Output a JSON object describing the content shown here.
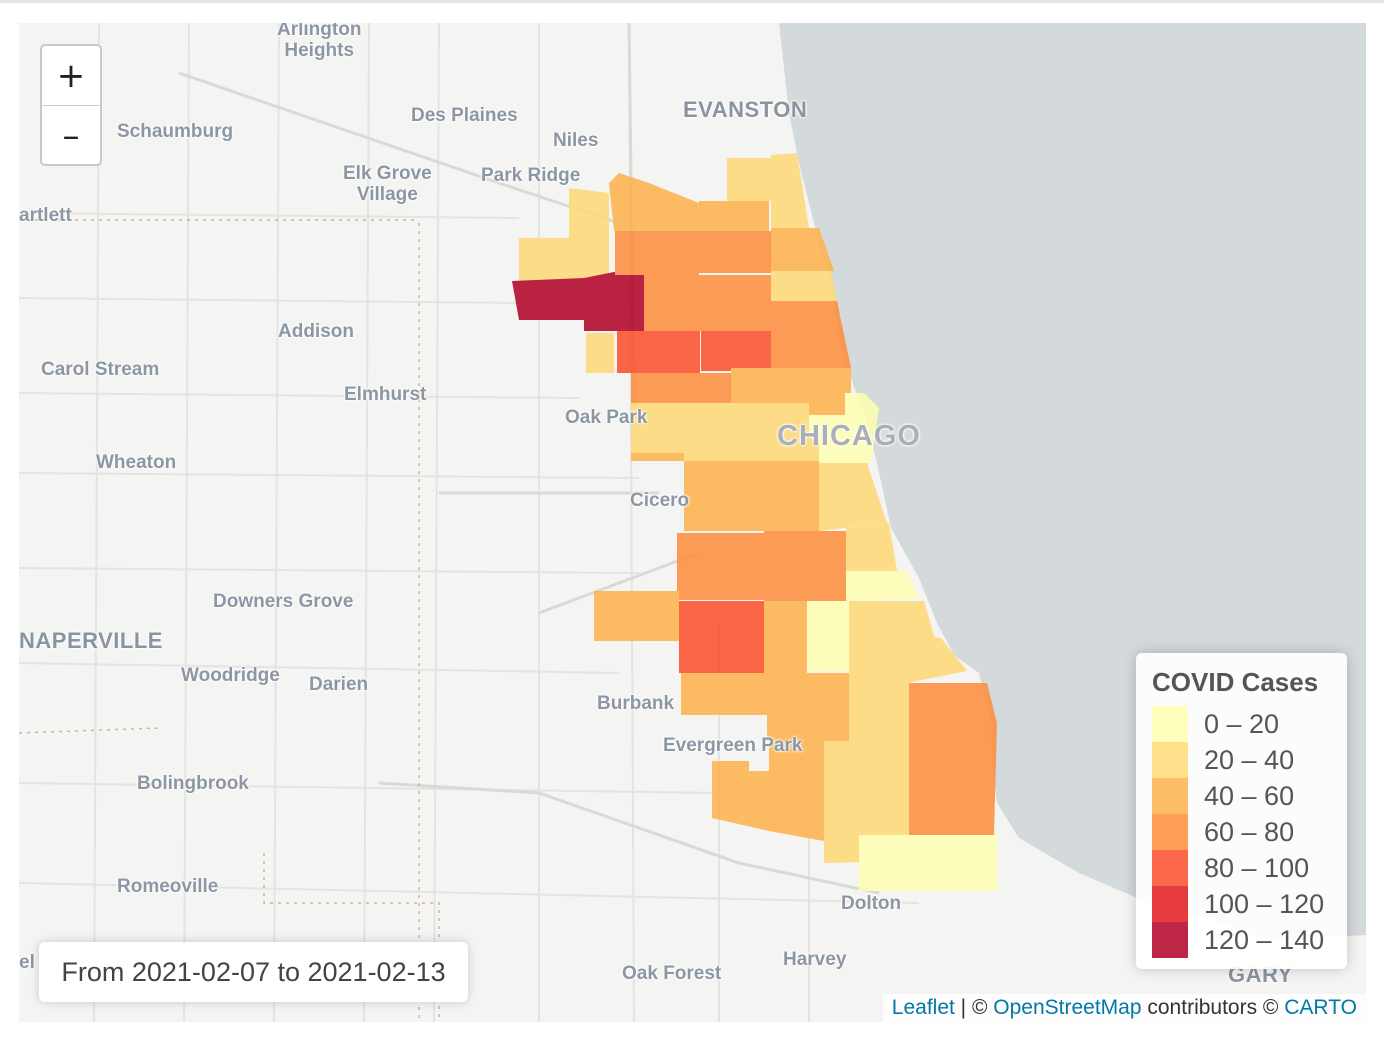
{
  "places": [
    {
      "id": "arlington-heights",
      "text": "Arlington\nHeights"
    },
    {
      "id": "schaumburg",
      "text": "Schaumburg"
    },
    {
      "id": "des-plaines",
      "text": "Des Plaines"
    },
    {
      "id": "niles",
      "text": "Niles"
    },
    {
      "id": "evanston",
      "text": "EVANSTON"
    },
    {
      "id": "elk-grove",
      "text": "Elk Grove\nVillage"
    },
    {
      "id": "park-ridge",
      "text": "Park Ridge"
    },
    {
      "id": "bartlett",
      "text": "artlett"
    },
    {
      "id": "addison",
      "text": "Addison"
    },
    {
      "id": "carol-stream",
      "text": "Carol Stream"
    },
    {
      "id": "elmhurst",
      "text": "Elmhurst"
    },
    {
      "id": "oak-park",
      "text": "Oak Park"
    },
    {
      "id": "chicago",
      "text": "CHICAGO"
    },
    {
      "id": "wheaton",
      "text": "Wheaton"
    },
    {
      "id": "cicero",
      "text": "Cicero"
    },
    {
      "id": "downers-grove",
      "text": "Downers Grove"
    },
    {
      "id": "naperville",
      "text": "NAPERVILLE"
    },
    {
      "id": "woodridge",
      "text": "Woodridge"
    },
    {
      "id": "darien",
      "text": "Darien"
    },
    {
      "id": "burbank",
      "text": "Burbank"
    },
    {
      "id": "evergreen-park",
      "text": "Evergreen Park"
    },
    {
      "id": "bolingbrook",
      "text": "Bolingbrook"
    },
    {
      "id": "romeoville",
      "text": "Romeoville"
    },
    {
      "id": "dolton",
      "text": "Dolton"
    },
    {
      "id": "harvey",
      "text": "Harvey"
    },
    {
      "id": "oak-forest",
      "text": "Oak Forest"
    },
    {
      "id": "gary",
      "text": "GARY"
    },
    {
      "id": "elgin-frag",
      "text": "el"
    }
  ],
  "zoom": {
    "in_label": "+",
    "out_label": "–"
  },
  "legend": {
    "title": "COVID Cases",
    "bins": [
      {
        "label": "0 – 20",
        "color": "#ffffb2"
      },
      {
        "label": "20 – 40",
        "color": "#fed976"
      },
      {
        "label": "40 – 60",
        "color": "#feb24c"
      },
      {
        "label": "60 – 80",
        "color": "#fd8d3c"
      },
      {
        "label": "80 – 100",
        "color": "#fc4e2a"
      },
      {
        "label": "100 – 120",
        "color": "#e31a1c"
      },
      {
        "label": "120 – 140",
        "color": "#b10026"
      }
    ]
  },
  "date_range": "From 2021-02-07 to 2021-02-13",
  "attribution": {
    "leaflet": "Leaflet",
    "sep1": " | © ",
    "osm": "OpenStreetMap",
    "mid": " contributors © ",
    "carto": "CARTO"
  },
  "colors": {
    "lake": "#d4dadc",
    "land": "#f4f4f2"
  },
  "zip_areas": [
    {
      "id": "60631",
      "bin": 1
    },
    {
      "id": "60646",
      "bin": 2
    },
    {
      "id": "60645",
      "bin": 2
    },
    {
      "id": "60626",
      "bin": 1
    },
    {
      "id": "60666",
      "bin": 6
    },
    {
      "id": "60656",
      "bin": 1
    },
    {
      "id": "60630",
      "bin": 3
    },
    {
      "id": "60625",
      "bin": 3
    },
    {
      "id": "60659",
      "bin": 2
    },
    {
      "id": "60640",
      "bin": 1
    },
    {
      "id": "60634",
      "bin": 4
    },
    {
      "id": "60641",
      "bin": 4
    },
    {
      "id": "60618",
      "bin": 3
    },
    {
      "id": "60613",
      "bin": 3
    },
    {
      "id": "60707",
      "bin": 0
    },
    {
      "id": "60639",
      "bin": 3
    },
    {
      "id": "60647",
      "bin": 2
    },
    {
      "id": "60614",
      "bin": 2
    },
    {
      "id": "60651",
      "bin": 1
    },
    {
      "id": "60622",
      "bin": 1
    },
    {
      "id": "60610",
      "bin": 0
    },
    {
      "id": "60644",
      "bin": 2
    },
    {
      "id": "60624",
      "bin": 1
    },
    {
      "id": "60612",
      "bin": 1
    },
    {
      "id": "60607",
      "bin": 0
    },
    {
      "id": "60611",
      "bin": 0
    },
    {
      "id": "60623",
      "bin": 2
    },
    {
      "id": "60608",
      "bin": 2
    },
    {
      "id": "60616",
      "bin": 1
    },
    {
      "id": "60632",
      "bin": 3
    },
    {
      "id": "60609",
      "bin": 3
    },
    {
      "id": "60653",
      "bin": 1
    },
    {
      "id": "60615",
      "bin": 0
    },
    {
      "id": "60638",
      "bin": 2
    },
    {
      "id": "60629",
      "bin": 4
    },
    {
      "id": "60636",
      "bin": 2
    },
    {
      "id": "60621",
      "bin": 0
    },
    {
      "id": "60637",
      "bin": 1
    },
    {
      "id": "60652",
      "bin": 2
    },
    {
      "id": "60620",
      "bin": 2
    },
    {
      "id": "60619",
      "bin": 1
    },
    {
      "id": "60617",
      "bin": 3
    },
    {
      "id": "60643",
      "bin": 2
    },
    {
      "id": "60628",
      "bin": 1
    },
    {
      "id": "60827",
      "bin": 0
    },
    {
      "id": "60633",
      "bin": 0
    },
    {
      "id": "60649",
      "bin": 1
    }
  ]
}
